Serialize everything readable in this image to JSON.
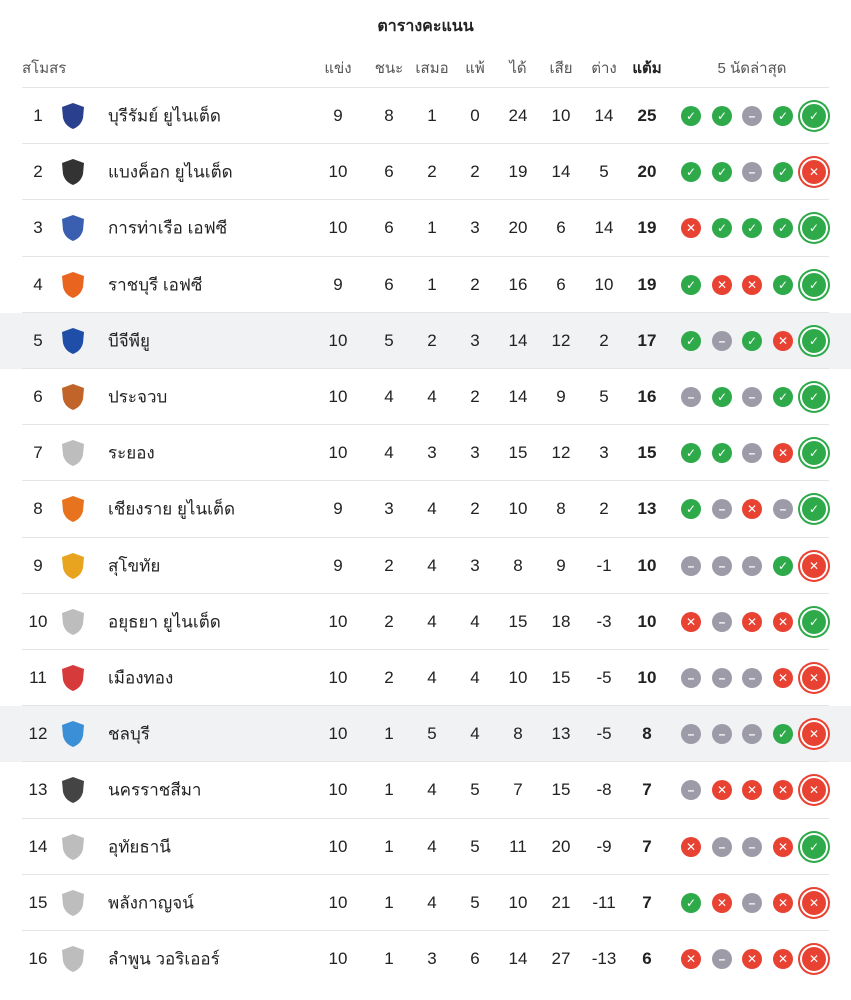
{
  "title": "ตารางคะแนน",
  "headers": {
    "club": "สโมสร",
    "played": "แข่ง",
    "won": "ชนะ",
    "drawn": "เสมอ",
    "lost": "แพ้",
    "gf": "ได้",
    "ga": "เสีย",
    "gd": "ต่าง",
    "pts": "แต้ม",
    "form": "5 นัดล่าสุด"
  },
  "colors": {
    "win": "#2eaa4a",
    "loss": "#e84233",
    "draw": "#9e9ba9",
    "highlight_row": "#f1f2f4"
  },
  "rows": [
    {
      "rank": "1",
      "team": "บุรีรัมย์ ยูไนเต็ด",
      "p": "9",
      "w": "8",
      "d": "1",
      "l": "0",
      "gf": "24",
      "ga": "10",
      "gd": "14",
      "pts": "25",
      "form": [
        "W",
        "W",
        "D",
        "W",
        "W"
      ],
      "logo": "#2b3f8f"
    },
    {
      "rank": "2",
      "team": "แบงค็อก ยูไนเต็ด",
      "p": "10",
      "w": "6",
      "d": "2",
      "l": "2",
      "gf": "19",
      "ga": "14",
      "gd": "5",
      "pts": "20",
      "form": [
        "W",
        "W",
        "D",
        "W",
        "L"
      ],
      "logo": "#333333"
    },
    {
      "rank": "3",
      "team": "การท่าเรือ เอฟซี",
      "p": "10",
      "w": "6",
      "d": "1",
      "l": "3",
      "gf": "20",
      "ga": "6",
      "gd": "14",
      "pts": "19",
      "form": [
        "L",
        "W",
        "W",
        "W",
        "W"
      ],
      "logo": "#3a5fb0"
    },
    {
      "rank": "4",
      "team": "ราชบุรี เอฟซี",
      "p": "9",
      "w": "6",
      "d": "1",
      "l": "2",
      "gf": "16",
      "ga": "6",
      "gd": "10",
      "pts": "19",
      "form": [
        "W",
        "L",
        "L",
        "W",
        "W"
      ],
      "logo": "#e8641f"
    },
    {
      "rank": "5",
      "team": "บีจีพียู",
      "p": "10",
      "w": "5",
      "d": "2",
      "l": "3",
      "gf": "14",
      "ga": "12",
      "gd": "2",
      "pts": "17",
      "form": [
        "W",
        "D",
        "W",
        "L",
        "W"
      ],
      "logo": "#1f4ea8",
      "highlight": true
    },
    {
      "rank": "6",
      "team": "ประจวบ",
      "p": "10",
      "w": "4",
      "d": "4",
      "l": "2",
      "gf": "14",
      "ga": "9",
      "gd": "5",
      "pts": "16",
      "form": [
        "D",
        "W",
        "D",
        "W",
        "W"
      ],
      "logo": "#c0642a"
    },
    {
      "rank": "7",
      "team": "ระยอง",
      "p": "10",
      "w": "4",
      "d": "3",
      "l": "3",
      "gf": "15",
      "ga": "12",
      "gd": "3",
      "pts": "15",
      "form": [
        "W",
        "W",
        "D",
        "L",
        "W"
      ],
      "logo": "#bdbdbd"
    },
    {
      "rank": "8",
      "team": "เชียงราย ยูไนเต็ด",
      "p": "9",
      "w": "3",
      "d": "4",
      "l": "2",
      "gf": "10",
      "ga": "8",
      "gd": "2",
      "pts": "13",
      "form": [
        "W",
        "D",
        "L",
        "D",
        "W"
      ],
      "logo": "#e8731f"
    },
    {
      "rank": "9",
      "team": "สุโขทัย",
      "p": "9",
      "w": "2",
      "d": "4",
      "l": "3",
      "gf": "8",
      "ga": "9",
      "gd": "-1",
      "pts": "10",
      "form": [
        "D",
        "D",
        "D",
        "W",
        "L"
      ],
      "logo": "#e8a31f"
    },
    {
      "rank": "10",
      "team": "อยุธยา ยูไนเต็ด",
      "p": "10",
      "w": "2",
      "d": "4",
      "l": "4",
      "gf": "15",
      "ga": "18",
      "gd": "-3",
      "pts": "10",
      "form": [
        "L",
        "D",
        "L",
        "L",
        "W"
      ],
      "logo": "#bdbdbd"
    },
    {
      "rank": "11",
      "team": "เมืองทอง",
      "p": "10",
      "w": "2",
      "d": "4",
      "l": "4",
      "gf": "10",
      "ga": "15",
      "gd": "-5",
      "pts": "10",
      "form": [
        "D",
        "D",
        "D",
        "L",
        "L"
      ],
      "logo": "#d63a3a"
    },
    {
      "rank": "12",
      "team": "ชลบุรี",
      "p": "10",
      "w": "1",
      "d": "5",
      "l": "4",
      "gf": "8",
      "ga": "13",
      "gd": "-5",
      "pts": "8",
      "form": [
        "D",
        "D",
        "D",
        "W",
        "L"
      ],
      "logo": "#3a8fd6",
      "highlight": true
    },
    {
      "rank": "13",
      "team": "นครราชสีมา",
      "p": "10",
      "w": "1",
      "d": "4",
      "l": "5",
      "gf": "7",
      "ga": "15",
      "gd": "-8",
      "pts": "7",
      "form": [
        "D",
        "L",
        "L",
        "L",
        "L"
      ],
      "logo": "#444444"
    },
    {
      "rank": "14",
      "team": "อุทัยธานี",
      "p": "10",
      "w": "1",
      "d": "4",
      "l": "5",
      "gf": "11",
      "ga": "20",
      "gd": "-9",
      "pts": "7",
      "form": [
        "L",
        "D",
        "D",
        "L",
        "W"
      ],
      "logo": "#bdbdbd"
    },
    {
      "rank": "15",
      "team": "พลังกาญจน์",
      "p": "10",
      "w": "1",
      "d": "4",
      "l": "5",
      "gf": "10",
      "ga": "21",
      "gd": "-11",
      "pts": "7",
      "form": [
        "W",
        "L",
        "D",
        "L",
        "L"
      ],
      "logo": "#bdbdbd"
    },
    {
      "rank": "16",
      "team": "ลำพูน วอริเออร์",
      "p": "10",
      "w": "1",
      "d": "3",
      "l": "6",
      "gf": "14",
      "ga": "27",
      "gd": "-13",
      "pts": "6",
      "form": [
        "L",
        "D",
        "L",
        "L",
        "L"
      ],
      "logo": "#bdbdbd"
    }
  ]
}
